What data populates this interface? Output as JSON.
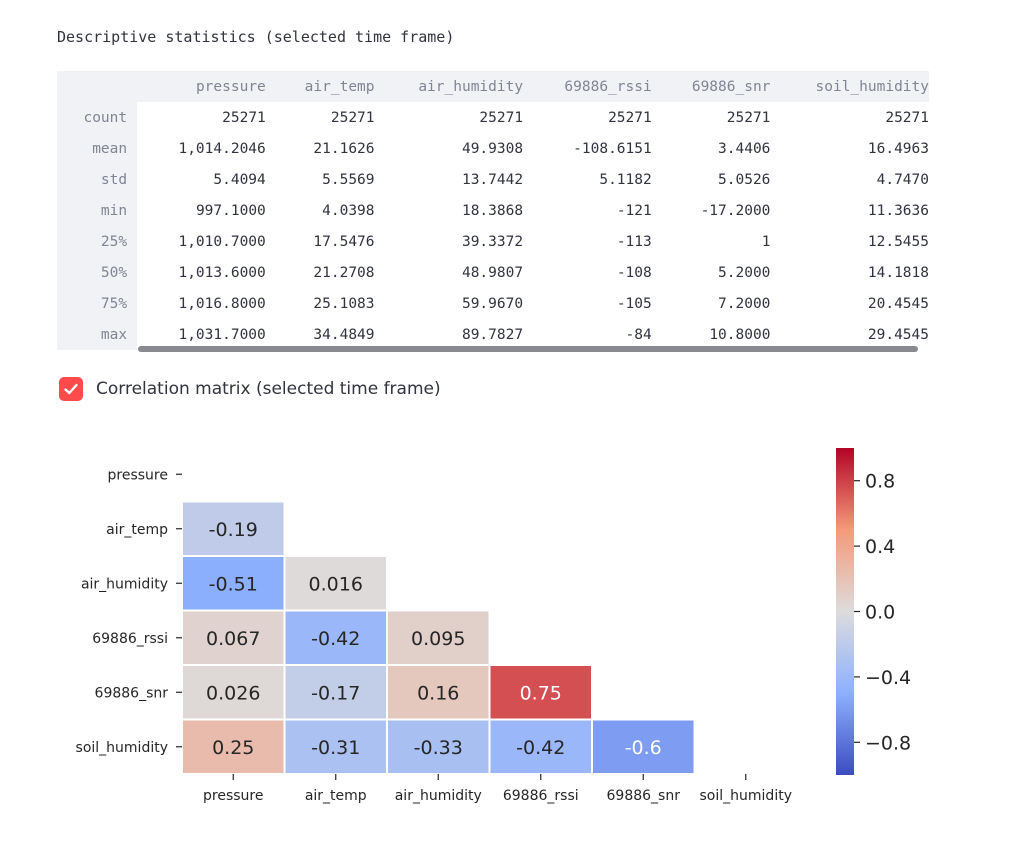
{
  "stats": {
    "caption": "Descriptive statistics (selected time frame)",
    "columns": [
      "pressure",
      "air_temp",
      "air_humidity",
      "69886_rssi",
      "69886_snr",
      "soil_humidity"
    ],
    "rows": [
      {
        "label": "count",
        "values": [
          "25271",
          "25271",
          "25271",
          "25271",
          "25271",
          "25271"
        ]
      },
      {
        "label": "mean",
        "values": [
          "1,014.2046",
          "21.1626",
          "49.9308",
          "-108.6151",
          "3.4406",
          "16.4963"
        ]
      },
      {
        "label": "std",
        "values": [
          "5.4094",
          "5.5569",
          "13.7442",
          "5.1182",
          "5.0526",
          "4.7470"
        ]
      },
      {
        "label": "min",
        "values": [
          "997.1000",
          "4.0398",
          "18.3868",
          "-121",
          "-17.2000",
          "11.3636"
        ]
      },
      {
        "label": "25%",
        "values": [
          "1,010.7000",
          "17.5476",
          "39.3372",
          "-113",
          "1",
          "12.5455"
        ]
      },
      {
        "label": "50%",
        "values": [
          "1,013.6000",
          "21.2708",
          "48.9807",
          "-108",
          "5.2000",
          "14.1818"
        ]
      },
      {
        "label": "75%",
        "values": [
          "1,016.8000",
          "25.1083",
          "59.9670",
          "-105",
          "7.2000",
          "20.4545"
        ]
      },
      {
        "label": "max",
        "values": [
          "1,031.7000",
          "34.4849",
          "89.7827",
          "-84",
          "10.8000",
          "29.4545"
        ]
      }
    ]
  },
  "correlation_toggle": {
    "label": "Correlation matrix (selected time frame)",
    "checked": true,
    "color": "#ff4b4b"
  },
  "chart_data": {
    "type": "heatmap",
    "variables": [
      "pressure",
      "air_temp",
      "air_humidity",
      "69886_rssi",
      "69886_snr",
      "soil_humidity"
    ],
    "matrix": [
      [
        null,
        null,
        null,
        null,
        null,
        null
      ],
      [
        -0.19,
        null,
        null,
        null,
        null,
        null
      ],
      [
        -0.51,
        0.016,
        null,
        null,
        null,
        null
      ],
      [
        0.067,
        -0.42,
        0.095,
        null,
        null,
        null
      ],
      [
        0.026,
        -0.17,
        0.16,
        0.75,
        null,
        null
      ],
      [
        0.25,
        -0.31,
        -0.33,
        -0.42,
        -0.6,
        null
      ]
    ],
    "labels": [
      [
        null,
        null,
        null,
        null,
        null,
        null
      ],
      [
        "-0.19",
        null,
        null,
        null,
        null,
        null
      ],
      [
        "-0.51",
        "0.016",
        null,
        null,
        null,
        null
      ],
      [
        "0.067",
        "-0.42",
        "0.095",
        null,
        null,
        null
      ],
      [
        "0.026",
        "-0.17",
        "0.16",
        "0.75",
        null,
        null
      ],
      [
        "0.25",
        "-0.31",
        "-0.33",
        "-0.42",
        "-0.6",
        null
      ]
    ],
    "colormap": "coolwarm",
    "vmin": -1,
    "vmax": 1,
    "colorbar_ticks": [
      {
        "value": 0.8,
        "label": "0.8"
      },
      {
        "value": 0.4,
        "label": "0.4"
      },
      {
        "value": 0.0,
        "label": "0.0"
      },
      {
        "value": -0.4,
        "label": "−0.4"
      },
      {
        "value": -0.8,
        "label": "−0.8"
      }
    ],
    "mask": "upper-triangle"
  }
}
